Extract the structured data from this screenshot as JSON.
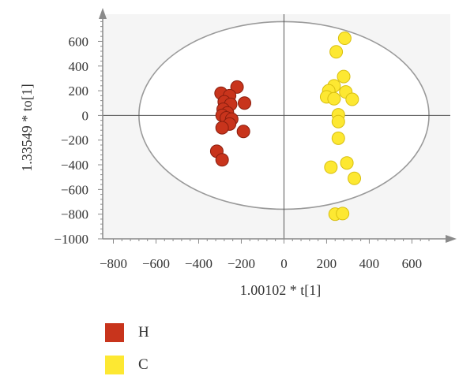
{
  "chart_data": {
    "type": "scatter",
    "xlabel": "1.00102 * t[1]",
    "ylabel": "1.33549 * to[1]",
    "xlim": [
      -850,
      780
    ],
    "ylim": [
      -1000,
      820
    ],
    "xticks": [
      -800,
      -600,
      -400,
      -200,
      0,
      200,
      400,
      600
    ],
    "yticks": [
      600,
      400,
      200,
      0,
      -200,
      -400,
      -600,
      -800,
      -1000
    ],
    "grid": false,
    "legend_position": "bottom-left",
    "confidence_ellipse": {
      "center": [
        0,
        0
      ],
      "semi_axis_x": 680,
      "semi_axis_y": 760
    },
    "series": [
      {
        "name": "H",
        "color": "#c8341c",
        "points": [
          [
            -220,
            230
          ],
          [
            -295,
            180
          ],
          [
            -255,
            160
          ],
          [
            -280,
            110
          ],
          [
            -185,
            100
          ],
          [
            -250,
            90
          ],
          [
            -285,
            50
          ],
          [
            -265,
            20
          ],
          [
            -290,
            0
          ],
          [
            -270,
            -20
          ],
          [
            -245,
            -30
          ],
          [
            -255,
            -70
          ],
          [
            -290,
            -100
          ],
          [
            -190,
            -130
          ],
          [
            -315,
            -290
          ],
          [
            -290,
            -360
          ]
        ]
      },
      {
        "name": "C",
        "color": "#fde832",
        "points": [
          [
            285,
            625
          ],
          [
            245,
            515
          ],
          [
            280,
            315
          ],
          [
            235,
            240
          ],
          [
            210,
            200
          ],
          [
            290,
            190
          ],
          [
            200,
            150
          ],
          [
            235,
            135
          ],
          [
            320,
            130
          ],
          [
            255,
            5
          ],
          [
            255,
            -50
          ],
          [
            255,
            -185
          ],
          [
            220,
            -420
          ],
          [
            295,
            -385
          ],
          [
            330,
            -510
          ],
          [
            240,
            -800
          ],
          [
            275,
            -795
          ]
        ]
      }
    ]
  }
}
